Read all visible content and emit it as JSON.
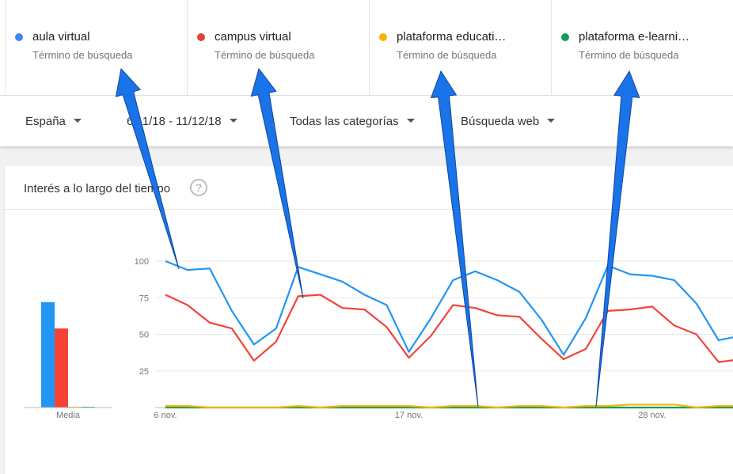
{
  "terms": [
    {
      "name": "aula virtual",
      "sub": "Término de búsqueda",
      "color": "#4285f4"
    },
    {
      "name": "campus virtual",
      "sub": "Término de búsqueda",
      "color": "#db4437"
    },
    {
      "name": "plataforma educati…",
      "sub": "Término de búsqueda",
      "color": "#f4b400"
    },
    {
      "name": "plataforma e-learni…",
      "sub": "Término de búsqueda",
      "color": "#0f9d58"
    }
  ],
  "filters": {
    "region": "España",
    "date_range": "6/11/18 - 11/12/18",
    "category": "Todas las categorías",
    "search_type": "Búsqueda web"
  },
  "card": {
    "title": "Interés a lo largo del tiempo",
    "help": "?"
  },
  "chart_data": {
    "type": "line",
    "average_label": "Media",
    "average_bars": [
      {
        "value": 72,
        "color": "#2196f3"
      },
      {
        "value": 54,
        "color": "#f44336"
      },
      {
        "value": 0.5,
        "color": "#f4b400"
      },
      {
        "value": 0.3,
        "color": "#0f9d58"
      }
    ],
    "y_ticks": [
      25,
      50,
      75,
      100
    ],
    "ylim": [
      0,
      100
    ],
    "x_labels": [
      {
        "label": "6 nov.",
        "index": 0
      },
      {
        "label": "17 nov.",
        "index": 11
      },
      {
        "label": "28 nov.",
        "index": 22
      }
    ],
    "series": [
      {
        "color": "#2196f3",
        "values": [
          100,
          94,
          95,
          66,
          43,
          54,
          96,
          91,
          86,
          77,
          70,
          38,
          61,
          87,
          93,
          87,
          79,
          60,
          36,
          61,
          97,
          91,
          90,
          87,
          71,
          46,
          49
        ]
      },
      {
        "color": "#f44336",
        "values": [
          77,
          70,
          58,
          54,
          32,
          45,
          76,
          77,
          68,
          67,
          55,
          34,
          49,
          70,
          68,
          63,
          62,
          47,
          33,
          40,
          66,
          67,
          69,
          56,
          50,
          31,
          33
        ]
      },
      {
        "color": "#f4b400",
        "values": [
          1,
          1,
          0,
          0,
          0,
          0,
          1,
          0,
          1,
          1,
          1,
          1,
          0,
          1,
          1,
          0,
          1,
          1,
          0,
          1,
          1,
          2,
          2,
          2,
          0,
          1,
          1
        ]
      },
      {
        "color": "#0f9d58",
        "values": [
          0,
          0,
          0,
          0,
          0,
          0,
          0,
          0,
          0,
          0,
          0,
          0,
          0,
          0,
          0,
          0,
          0,
          0,
          0,
          0,
          0,
          0,
          0,
          0,
          0,
          0,
          0
        ]
      }
    ]
  },
  "annotation": {
    "arrow_color": "#1a73e8"
  }
}
